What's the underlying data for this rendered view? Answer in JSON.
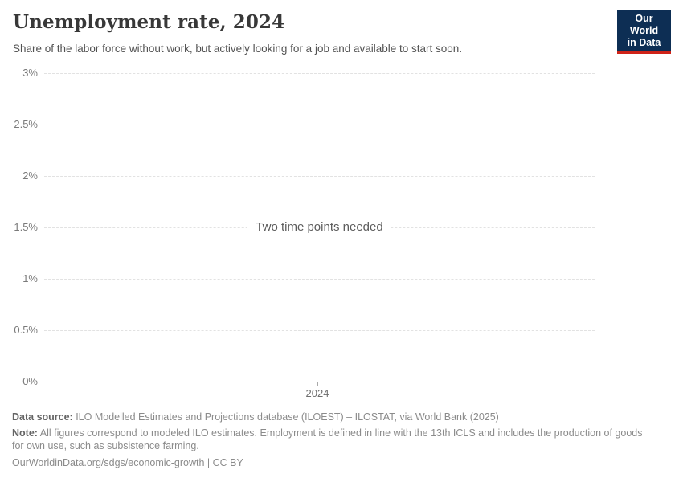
{
  "header": {
    "title": "Unemployment rate, 2024",
    "subtitle": "Share of the labor force without work, but actively looking for a job and available to start soon."
  },
  "logo": {
    "line1": "Our World",
    "line2": "in Data",
    "background_color": "#0d2e54",
    "accent_color": "#cf2318"
  },
  "chart": {
    "empty_message": "Two time points needed",
    "y_axis": {
      "ticks": [
        "3%",
        "2.5%",
        "2%",
        "1.5%",
        "1%",
        "0.5%",
        "0%"
      ]
    },
    "x_axis": {
      "ticks": [
        "2024"
      ]
    }
  },
  "chart_data": {
    "type": "line",
    "title": "Unemployment rate, 2024",
    "subtitle": "Share of the labor force without work, but actively looking for a job and available to start soon.",
    "series": [],
    "x": [
      2024
    ],
    "x_tick_labels": [
      "2024"
    ],
    "y_tick_labels": [
      "0%",
      "0.5%",
      "1%",
      "1.5%",
      "2%",
      "2.5%",
      "3%"
    ],
    "ylim": [
      0,
      3
    ],
    "grid": "horizontal-dashed",
    "legend": "none",
    "annotations": [
      "Two time points needed"
    ],
    "empty_state": true
  },
  "footer": {
    "data_source_label": "Data source:",
    "data_source_text": " ILO Modelled Estimates and Projections database (ILOEST) – ILOSTAT, via World Bank (2025)",
    "note_label": "Note:",
    "note_text": " All figures correspond to modeled ILO estimates. Employment is defined in line with the 13th ICLS and includes the production of goods for own use, such as subsistence farming.",
    "citation": "OurWorldinData.org/sdgs/economic-growth | CC BY"
  }
}
